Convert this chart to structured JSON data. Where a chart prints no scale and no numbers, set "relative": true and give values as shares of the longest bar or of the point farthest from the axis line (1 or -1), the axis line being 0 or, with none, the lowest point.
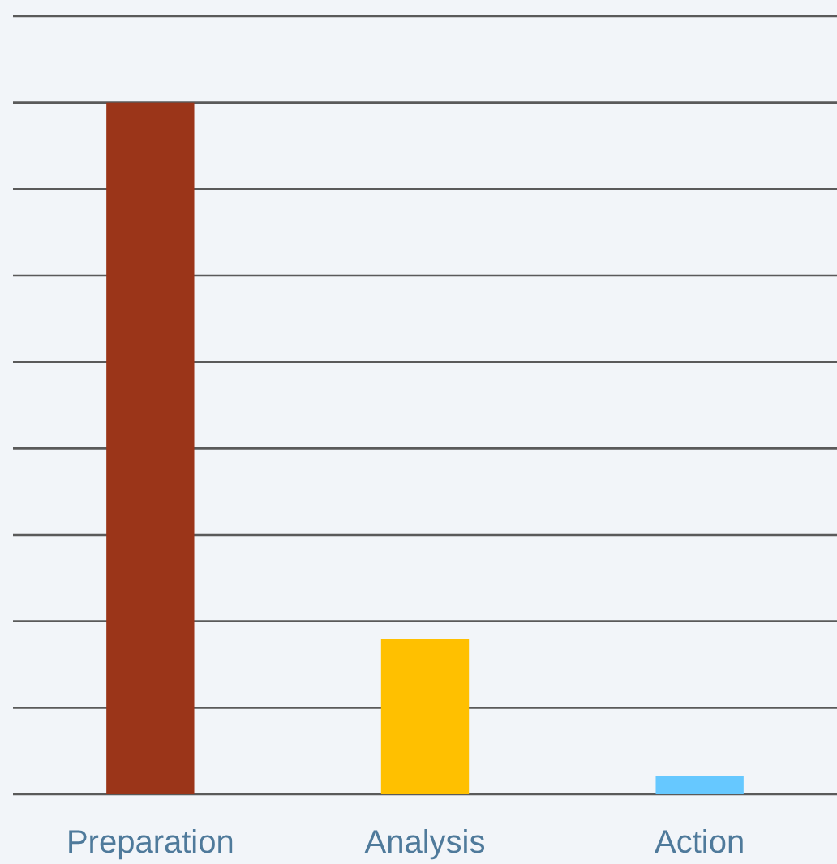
{
  "chart_data": {
    "type": "bar",
    "relative": true,
    "categories": [
      "Preparation",
      "Analysis",
      "Action"
    ],
    "values": [
      1,
      0.225,
      0.026
    ],
    "colors": [
      "#9b3519",
      "#ffc000",
      "#66c8ff"
    ],
    "grid": "y"
  }
}
